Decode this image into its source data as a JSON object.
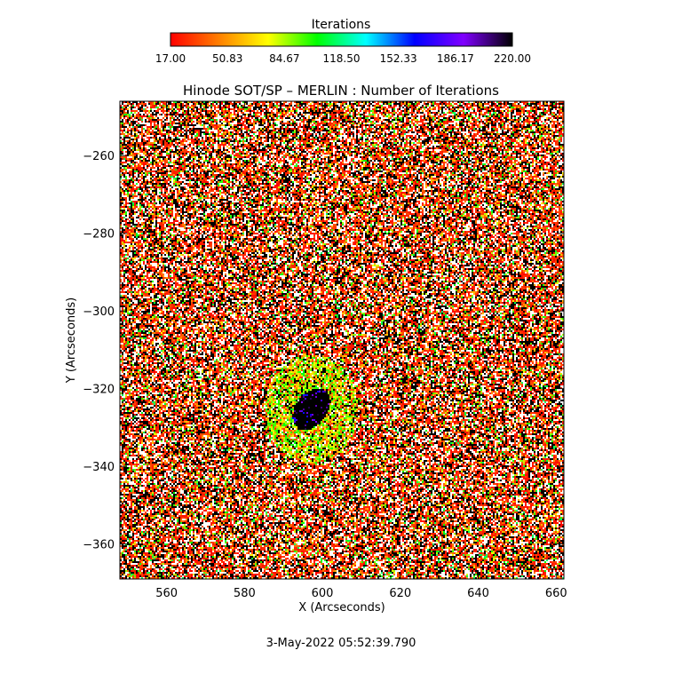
{
  "chart_data": {
    "type": "heatmap",
    "title": "Hinode SOT/SP – MERLIN : Number of Iterations",
    "xlabel": "X (Arcseconds)",
    "ylabel": "Y (Arcseconds)",
    "xlim": [
      548,
      662
    ],
    "ylim": [
      -369,
      -246
    ],
    "x_ticks": [
      560,
      580,
      600,
      620,
      640,
      660
    ],
    "y_ticks": [
      -260,
      -280,
      -300,
      -320,
      -340,
      -360
    ],
    "x_tick_labels": [
      "560",
      "580",
      "600",
      "620",
      "640",
      "660"
    ],
    "y_tick_labels": [
      "−260",
      "−280",
      "−300",
      "−320",
      "−340",
      "−360"
    ],
    "colorbar": {
      "title": "Iterations",
      "min": 17.0,
      "max": 220.0,
      "tick_labels": [
        "17.00",
        "50.83",
        "84.67",
        "118.50",
        "152.33",
        "186.17",
        "220.00"
      ],
      "colormap": [
        "#ff0000",
        "#ff8000",
        "#ffff00",
        "#00ff00",
        "#00ffff",
        "#0000ff",
        "#8000ff",
        "#000000"
      ]
    },
    "feature": {
      "description": "sunspot umbra with high iteration counts surrounded by penumbra of mid iteration counts, quiet sun background of noisy mixed values",
      "umbra_center": [
        597,
        -325
      ],
      "umbra_radius": [
        4,
        6
      ],
      "penumbra_radius": [
        12,
        14
      ]
    },
    "timestamp": "3-May-2022 05:52:39.790"
  }
}
